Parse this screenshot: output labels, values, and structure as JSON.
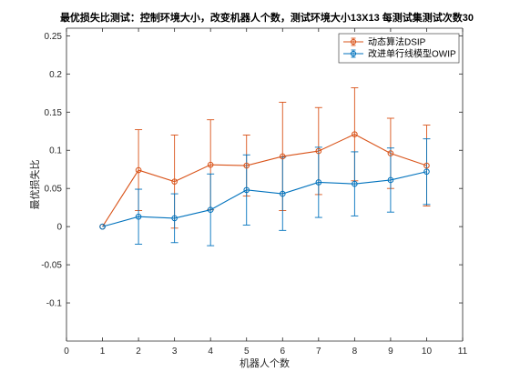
{
  "chart_data": {
    "type": "line",
    "title": "最优损失比测试：控制环境大小，改变机器人个数，测试环境大小13X13 每测试集测试次数30",
    "xlabel": "机器人个数",
    "ylabel": "最优损失比",
    "xlim": [
      0,
      11
    ],
    "ylim": [
      -0.15,
      0.26
    ],
    "xticks": [
      "0",
      "1",
      "2",
      "3",
      "4",
      "5",
      "6",
      "7",
      "8",
      "9",
      "10",
      "11"
    ],
    "yticks": [
      "-0.1",
      "-0.05",
      "0",
      "0.05",
      "0.1",
      "0.15",
      "0.2",
      "0.25"
    ],
    "grid": false,
    "legend_position": "top-right",
    "error_bars": true,
    "series": [
      {
        "name": "动态算法DSIP",
        "color": "#D95319",
        "marker": "circle",
        "x": [
          1,
          2,
          3,
          4,
          5,
          6,
          7,
          8,
          9,
          10
        ],
        "y": [
          0,
          0.074,
          0.059,
          0.081,
          0.08,
          0.092,
          0.099,
          0.121,
          0.096,
          0.08
        ],
        "err_low": [
          0,
          0.053,
          0.061,
          0.059,
          0.04,
          0.071,
          0.057,
          0.061,
          0.046,
          0.053
        ],
        "err_high": [
          0,
          0.053,
          0.061,
          0.059,
          0.04,
          0.071,
          0.057,
          0.061,
          0.046,
          0.053
        ]
      },
      {
        "name": "改进单行线模型OWIP",
        "color": "#0072BD",
        "marker": "circle",
        "x": [
          1,
          2,
          3,
          4,
          5,
          6,
          7,
          8,
          9,
          10
        ],
        "y": [
          0,
          0.013,
          0.011,
          0.022,
          0.048,
          0.043,
          0.058,
          0.056,
          0.061,
          0.072
        ],
        "err_low": [
          0,
          0.036,
          0.032,
          0.047,
          0.046,
          0.048,
          0.046,
          0.042,
          0.042,
          0.043
        ],
        "err_high": [
          0,
          0.036,
          0.032,
          0.047,
          0.046,
          0.048,
          0.046,
          0.042,
          0.042,
          0.043
        ]
      }
    ]
  }
}
